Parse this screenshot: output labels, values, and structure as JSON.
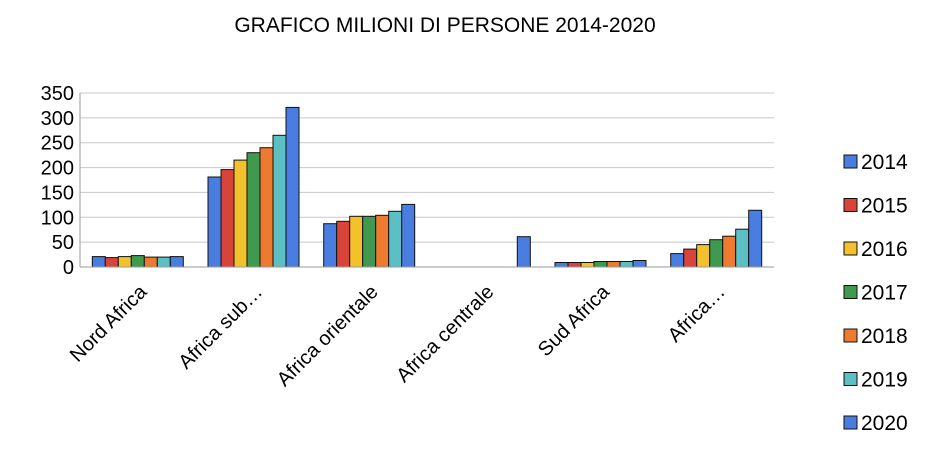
{
  "chart_data": {
    "type": "bar",
    "title": "GRAFICO MILIONI DI PERSONE 2014-2020",
    "xlabel": "",
    "ylabel": "",
    "ylim": [
      0,
      350
    ],
    "yticks": [
      "0",
      "50",
      "100",
      "150",
      "200",
      "250",
      "300",
      "350"
    ],
    "grid": true,
    "legend_position": "right",
    "categories": [
      "Nord Africa",
      "Africa sub…",
      "Africa orientale",
      "Africa centrale",
      "Sud Africa",
      "Africa…"
    ],
    "series": [
      {
        "name": "2014",
        "color": "#4a7de0",
        "values": [
          21,
          181,
          87,
          null,
          9,
          27
        ]
      },
      {
        "name": "2015",
        "color": "#d9443a",
        "values": [
          19,
          196,
          92,
          null,
          9,
          36
        ]
      },
      {
        "name": "2016",
        "color": "#f3c12c",
        "values": [
          21,
          215,
          102,
          null,
          9,
          45
        ]
      },
      {
        "name": "2017",
        "color": "#3f9a4f",
        "values": [
          23,
          230,
          102,
          null,
          11,
          55
        ]
      },
      {
        "name": "2018",
        "color": "#ee7a2f",
        "values": [
          20,
          240,
          104,
          null,
          11,
          62
        ]
      },
      {
        "name": "2019",
        "color": "#5bbfc4",
        "values": [
          20,
          265,
          112,
          null,
          11,
          76
        ]
      },
      {
        "name": "2020",
        "color": "#4a7de0",
        "values": [
          21,
          321,
          126,
          61,
          13,
          114
        ]
      }
    ]
  }
}
